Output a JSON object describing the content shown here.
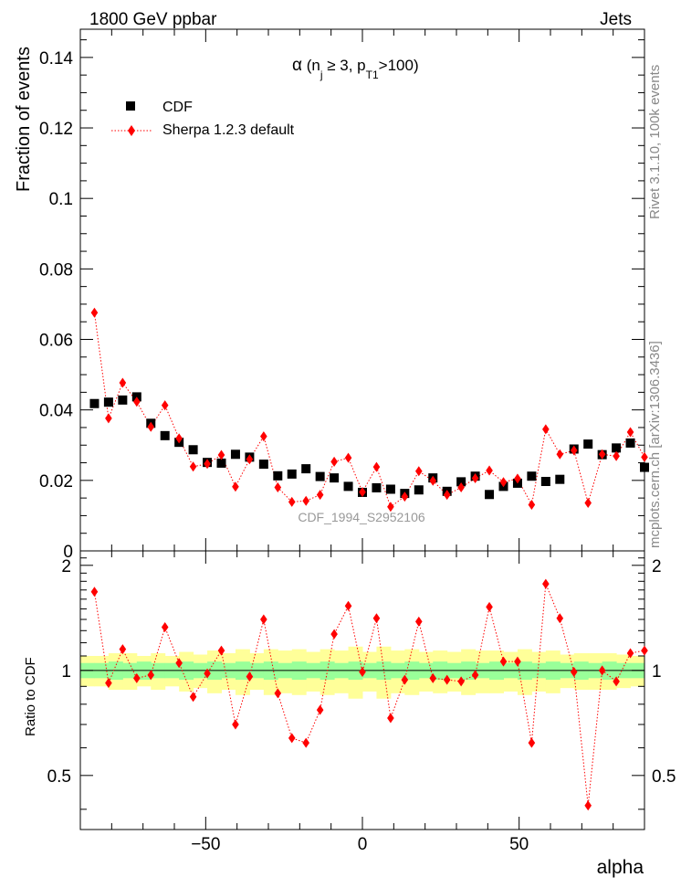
{
  "header": {
    "left": "1800 GeV ppbar",
    "right": "Jets"
  },
  "side_labels": {
    "rivet": "Rivet 3.1.10,  100k events",
    "mcplots": "mcplots.cern.ch [arXiv:1306.3436]"
  },
  "watermark": "CDF_1994_S2952106",
  "colors": {
    "cdf": "#000000",
    "sherpa": "#ff0000",
    "band_inner": "#99ff99",
    "band_outer": "#ffff99"
  },
  "chart_data": [
    {
      "type": "scatter",
      "title": "α (n_j ≥ 3, p_T1>100)",
      "title_parts": {
        "alpha": "α",
        "open": " (n",
        "sub_j": "j",
        "ge": " ≥ 3, p",
        "sub_t": "T1",
        "close": ">100)"
      },
      "xlabel": "alpha",
      "ylabel": "Fraction of events",
      "xlim": [
        -90,
        90
      ],
      "ylim": [
        0,
        0.148
      ],
      "yticks": [
        0,
        0.02,
        0.04,
        0.06,
        0.08,
        0.1,
        0.12,
        0.14
      ],
      "ytick_labels": [
        "0",
        "0.02",
        "0.04",
        "0.06",
        "0.08",
        "0.1",
        "0.12",
        "0.14"
      ],
      "legend_position": "top-left",
      "legend": [
        "CDF",
        "Sherpa 1.2.3 default"
      ],
      "x": [
        -85.5,
        -81,
        -76.5,
        -72,
        -67.5,
        -63,
        -58.5,
        -54,
        -49.5,
        -45,
        -40.5,
        -36,
        -31.5,
        -27,
        -22.5,
        -18,
        -13.5,
        -9,
        -4.5,
        0,
        4.5,
        9,
        13.5,
        18,
        22.5,
        27,
        31.5,
        36,
        40.5,
        45,
        49.5,
        54,
        58.5,
        63,
        67.5,
        72,
        76.5,
        81,
        85.5,
        90
      ],
      "series": [
        {
          "name": "CDF",
          "marker": "square",
          "values": [
            0.0418,
            0.0422,
            0.0428,
            0.0437,
            0.0362,
            0.0327,
            0.0308,
            0.0287,
            0.0251,
            0.0249,
            0.0274,
            0.0266,
            0.0246,
            0.0213,
            0.0218,
            0.0233,
            0.0211,
            0.0207,
            0.0183,
            0.0166,
            0.0179,
            0.0175,
            0.0163,
            0.0173,
            0.0207,
            0.0169,
            0.0196,
            0.0212,
            0.016,
            0.0183,
            0.0192,
            0.0212,
            0.0197,
            0.0203,
            0.0289,
            0.0303,
            0.0273,
            0.0292,
            0.0306,
            0.0237
          ]
        },
        {
          "name": "Sherpa 1.2.3 default",
          "marker": "diamond",
          "line": "dotted",
          "values": [
            0.0676,
            0.0376,
            0.0477,
            0.0423,
            0.0352,
            0.0413,
            0.0319,
            0.0239,
            0.0247,
            0.0272,
            0.0182,
            0.026,
            0.0325,
            0.018,
            0.0139,
            0.0142,
            0.0159,
            0.0253,
            0.0264,
            0.0167,
            0.0238,
            0.0125,
            0.0154,
            0.0226,
            0.0199,
            0.0159,
            0.018,
            0.0206,
            0.0228,
            0.0195,
            0.0205,
            0.0131,
            0.0345,
            0.0274,
            0.0285,
            0.0136,
            0.0274,
            0.0269,
            0.0337,
            0.0266
          ]
        }
      ]
    },
    {
      "type": "scatter",
      "xlabel": "alpha",
      "ylabel": "Ratio to CDF",
      "xlim": [
        -90,
        90
      ],
      "ylim": [
        0.35,
        2.2
      ],
      "yticks": [
        0.5,
        1,
        2
      ],
      "ytick_labels": [
        "0.5",
        "1",
        "2"
      ],
      "xticks": [
        -50,
        0,
        50
      ],
      "xtick_labels": [
        "−50",
        "0",
        "50"
      ],
      "bands": {
        "inner_halfwidth": [
          0.05,
          0.05,
          0.06,
          0.05,
          0.06,
          0.05,
          0.05,
          0.06,
          0.05,
          0.06,
          0.05,
          0.06,
          0.05,
          0.06,
          0.05,
          0.06,
          0.05,
          0.06,
          0.05,
          0.06,
          0.05,
          0.06,
          0.05,
          0.06,
          0.05,
          0.06,
          0.05,
          0.06,
          0.05,
          0.06,
          0.05,
          0.06,
          0.05,
          0.06,
          0.05,
          0.06,
          0.05,
          0.06,
          0.05,
          0.05
        ],
        "outer_halfwidth": [
          0.1,
          0.1,
          0.12,
          0.12,
          0.1,
          0.12,
          0.1,
          0.13,
          0.11,
          0.14,
          0.12,
          0.15,
          0.12,
          0.15,
          0.14,
          0.15,
          0.13,
          0.15,
          0.14,
          0.17,
          0.13,
          0.17,
          0.14,
          0.15,
          0.13,
          0.14,
          0.13,
          0.15,
          0.14,
          0.14,
          0.13,
          0.15,
          0.13,
          0.14,
          0.11,
          0.12,
          0.12,
          0.12,
          0.11,
          0.1
        ]
      },
      "series": [
        {
          "name": "Sherpa 1.2.3 default / CDF",
          "marker": "diamond",
          "line": "dotted",
          "values": [
            1.68,
            0.92,
            1.15,
            0.95,
            0.97,
            1.33,
            1.05,
            0.84,
            0.98,
            1.14,
            0.7,
            0.96,
            1.4,
            0.86,
            0.64,
            0.62,
            0.77,
            1.27,
            1.53,
            0.99,
            1.41,
            0.73,
            0.94,
            1.38,
            0.95,
            0.94,
            0.93,
            0.97,
            1.52,
            1.06,
            1.06,
            0.62,
            1.77,
            1.41,
            0.99,
            0.41,
            1.0,
            0.93,
            1.12,
            1.14
          ]
        }
      ]
    }
  ]
}
